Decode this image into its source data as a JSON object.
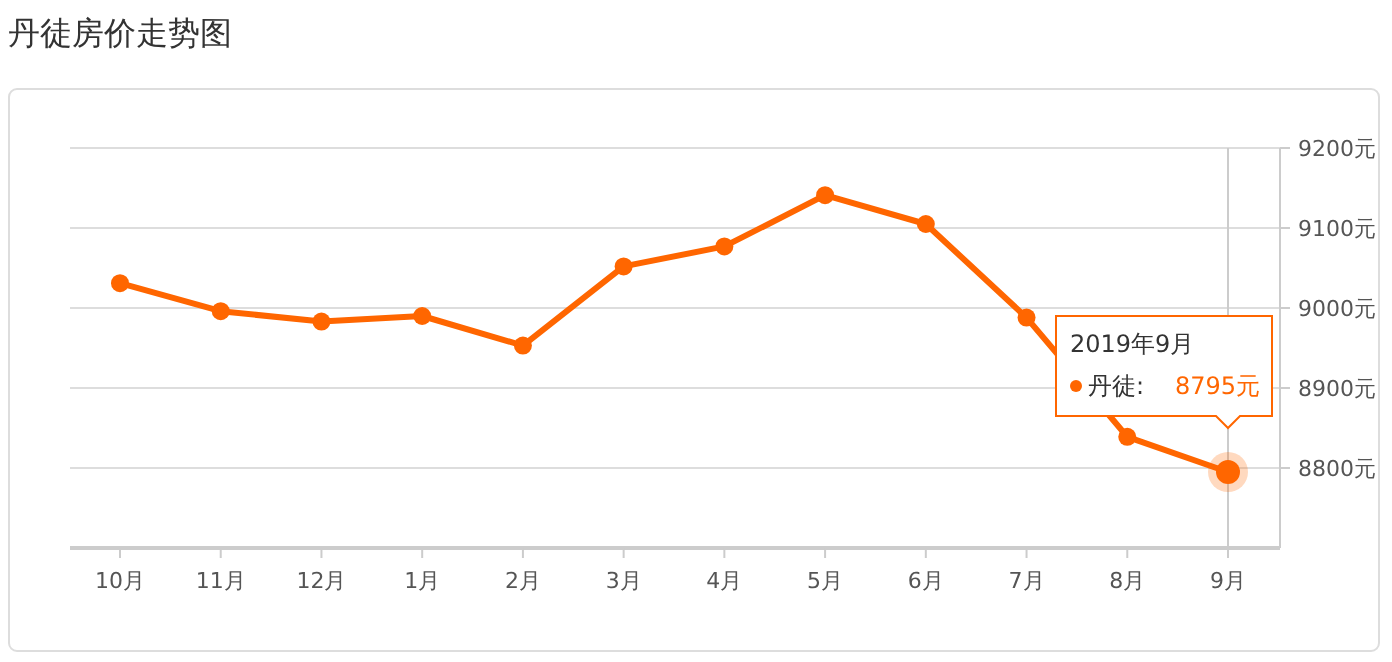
{
  "chart_data": {
    "type": "line",
    "title": "丹徒房价走势图",
    "categories": [
      "10月",
      "11月",
      "12月",
      "1月",
      "2月",
      "3月",
      "4月",
      "5月",
      "6月",
      "7月",
      "8月",
      "9月"
    ],
    "series": [
      {
        "color": "#ff6600",
        "values": [
          9031,
          8996,
          8983,
          8990,
          8953,
          9052,
          9077,
          9141,
          9105,
          8988,
          8839,
          8795
        ]
      }
    ],
    "ylim": [
      8700,
      9200
    ],
    "yticks": [
      {
        "value": 8700,
        "label": null
      },
      {
        "value": 8800,
        "label": "8800元"
      },
      {
        "value": 8900,
        "label": "8900元"
      },
      {
        "value": 9000,
        "label": "9000元"
      },
      {
        "value": 9100,
        "label": "9100元"
      },
      {
        "value": 9200,
        "label": "9200元"
      }
    ],
    "grid": "y",
    "marker": "circle",
    "ref_lines": [
      {
        "axis": "x",
        "value": "9月",
        "color": "#cccccc"
      }
    ],
    "annotations": [
      "2019年9月",
      "丹徒:",
      "8795元"
    ]
  }
}
